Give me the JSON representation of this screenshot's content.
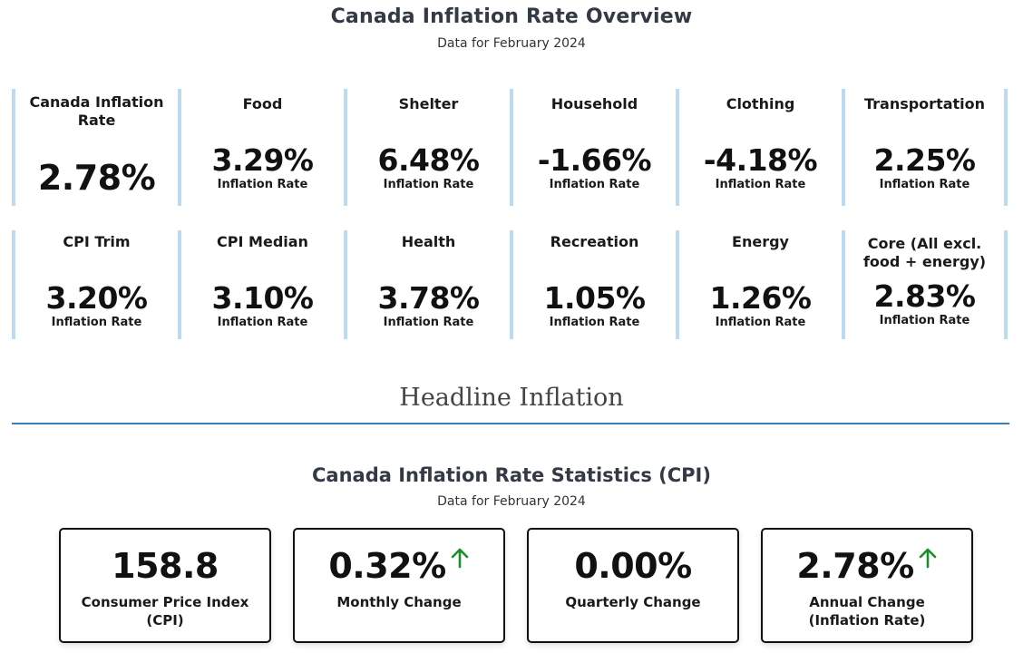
{
  "header": {
    "title": "Canada Inflation Rate Overview",
    "subtitle": "Data for February 2024"
  },
  "cards": [
    {
      "label": "Canada Inflation Rate",
      "value": "2.78%",
      "sub": ""
    },
    {
      "label": "Food",
      "value": "3.29%",
      "sub": "Inflation Rate"
    },
    {
      "label": "Shelter",
      "value": "6.48%",
      "sub": "Inflation Rate"
    },
    {
      "label": "Household",
      "value": "-1.66%",
      "sub": "Inflation Rate"
    },
    {
      "label": "Clothing",
      "value": "-4.18%",
      "sub": "Inflation Rate"
    },
    {
      "label": "Transportation",
      "value": "2.25%",
      "sub": "Inflation Rate"
    },
    {
      "label": "CPI Trim",
      "value": "3.20%",
      "sub": "Inflation Rate"
    },
    {
      "label": "CPI Median",
      "value": "3.10%",
      "sub": "Inflation Rate"
    },
    {
      "label": "Health",
      "value": "3.78%",
      "sub": "Inflation Rate"
    },
    {
      "label": "Recreation",
      "value": "1.05%",
      "sub": "Inflation Rate"
    },
    {
      "label": "Energy",
      "value": "1.26%",
      "sub": "Inflation Rate"
    },
    {
      "label": "Core (All excl. food + energy)",
      "value": "2.83%",
      "sub": "Inflation Rate"
    }
  ],
  "section": {
    "heading": "Headline Inflation"
  },
  "stats": {
    "title": "Canada Inflation Rate Statistics (CPI)",
    "subtitle": "Data for February 2024",
    "boxes": [
      {
        "value": "158.8",
        "label": "Consumer Price Index (CPI)",
        "trend_icon": ""
      },
      {
        "value": "0.32%",
        "label": "Monthly Change",
        "trend_icon": "up-arrow-icon"
      },
      {
        "value": "0.00%",
        "label": "Quarterly Change",
        "trend_icon": ""
      },
      {
        "value": "2.78%",
        "label": "Annual Change (Inflation Rate)",
        "trend_icon": "up-arrow-icon"
      }
    ]
  },
  "colors": {
    "card_border": "#bcdaf1",
    "section_rule": "#3a7fb5",
    "trend_up": "#1a8f2a",
    "title_text": "#333a45"
  }
}
